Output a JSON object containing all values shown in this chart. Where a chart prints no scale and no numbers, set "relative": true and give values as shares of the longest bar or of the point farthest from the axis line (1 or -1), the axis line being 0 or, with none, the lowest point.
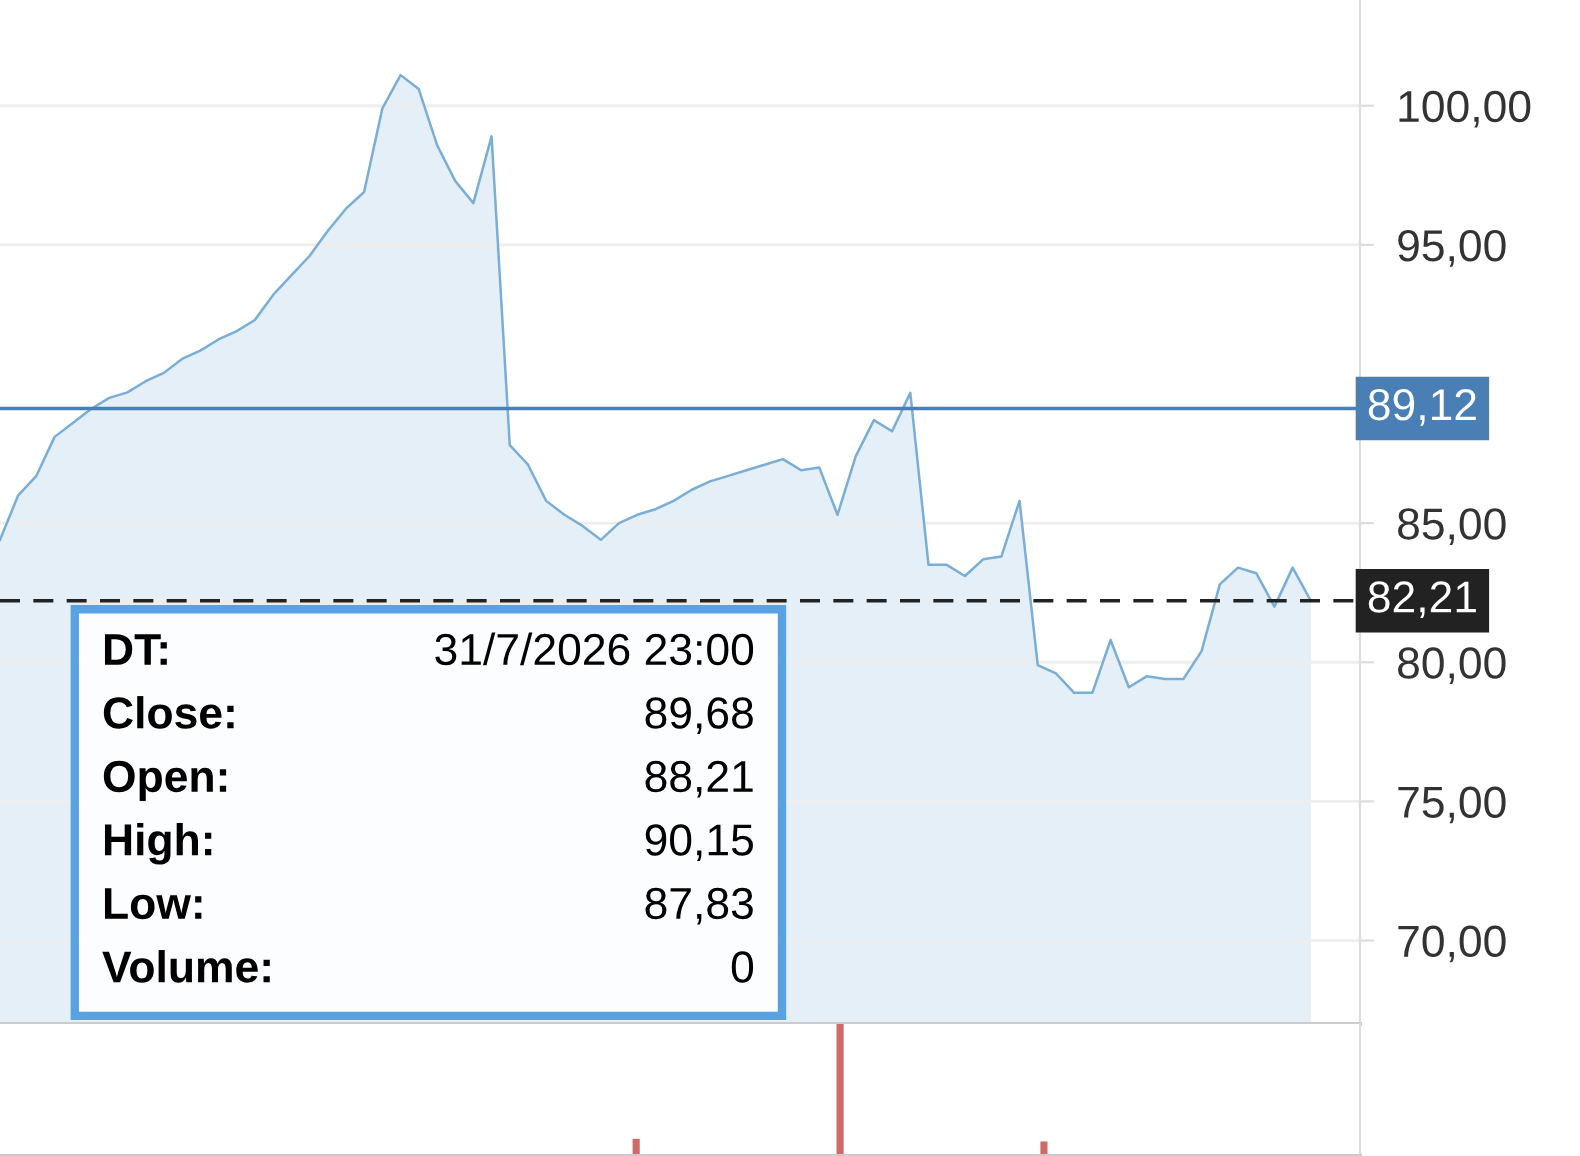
{
  "chart_data": [
    {
      "type": "area",
      "categories": [
        null,
        null,
        null,
        null,
        null,
        null,
        null,
        null,
        null,
        null,
        null,
        null,
        null,
        null,
        null,
        null,
        null,
        null,
        null,
        null,
        null,
        null,
        null,
        null,
        null,
        null,
        null,
        null,
        null,
        null,
        null,
        null,
        null,
        null,
        null,
        null,
        null,
        null,
        null,
        null,
        null,
        null,
        null,
        null,
        null,
        null,
        null,
        null,
        null,
        null,
        null,
        null,
        null,
        null,
        null,
        null,
        null,
        null,
        null,
        null,
        null,
        null,
        null,
        null,
        null,
        null,
        null,
        null,
        null,
        null,
        null,
        null,
        null
      ],
      "series": [
        {
          "color": "#7aaed6",
          "values": [
            84.4,
            86.0,
            86.7,
            88.1,
            88.6,
            89.1,
            89.5,
            89.7,
            90.1,
            90.4,
            90.9,
            91.2,
            91.6,
            91.9,
            92.3,
            93.2,
            93.9,
            94.6,
            95.5,
            96.3,
            96.9,
            99.9,
            101.1,
            100.6,
            98.6,
            97.3,
            96.5,
            98.9,
            87.8,
            87.1,
            85.8,
            85.3,
            84.9,
            84.4,
            85.0,
            85.3,
            85.5,
            85.8,
            86.2,
            86.5,
            86.7,
            86.9,
            87.1,
            87.3,
            86.9,
            87.0,
            85.3,
            87.4,
            88.7,
            88.3,
            89.68,
            83.5,
            83.5,
            83.1,
            83.7,
            83.8,
            85.8,
            79.9,
            79.6,
            78.9,
            78.9,
            80.8,
            79.1,
            79.5,
            79.4,
            79.4,
            80.4,
            82.8,
            83.4,
            83.2,
            82.0,
            83.4,
            82.21
          ]
        }
      ],
      "ylim": [
        67.0,
        103.8
      ],
      "yticks": [
        {
          "value": 70,
          "label": "70,00"
        },
        {
          "value": 75,
          "label": "75,00"
        },
        {
          "value": 80,
          "label": "80,00"
        },
        {
          "value": 85,
          "label": "85,00"
        },
        {
          "value": 95,
          "label": "95,00"
        },
        {
          "value": 100,
          "label": "100,00"
        }
      ],
      "tick_labels": "y",
      "grid": "y",
      "marker": "none",
      "line_style": "solid",
      "ref_lines": [
        {
          "axis": "y",
          "value": 89.12,
          "label": "89,12",
          "color": "#4a7fb5",
          "line_style": "solid"
        },
        {
          "axis": "y",
          "value": 82.21,
          "label": "82,21",
          "color": "#222222",
          "line_style": "dashed"
        }
      ],
      "annotations": [
        "DT: 31/7/2026 23:00",
        "Close: 89,68",
        "Open: 88,21",
        "High: 90,15",
        "Low: 87,83",
        "Volume: 0"
      ]
    },
    {
      "type": "bar",
      "relative": true,
      "tick_labels": false,
      "categories": [
        null,
        null,
        null
      ],
      "series": [
        {
          "color": "#d06a6a",
          "values": [
            0.13,
            1,
            0.11
          ]
        }
      ]
    }
  ]
}
